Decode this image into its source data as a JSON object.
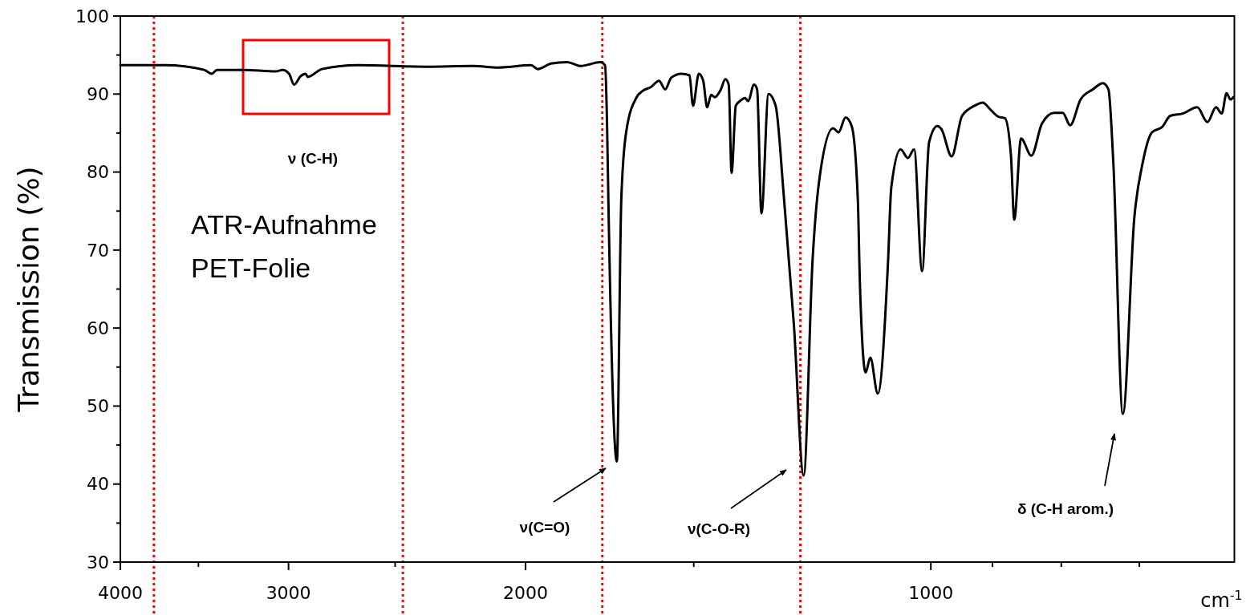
{
  "chart_data": {
    "type": "line",
    "xlabel": "cm$^{-1}$",
    "ylabel": "Transmission (%)",
    "log": "x",
    "xlim": [
      4000,
      595
    ],
    "ylim": [
      30,
      100
    ],
    "xticks": [
      4000,
      3000,
      2000,
      1000,
      {
        "value": 3500,
        "label": null
      },
      {
        "value": 2500,
        "label": null
      },
      {
        "value": 1500,
        "label": null
      },
      {
        "value": 900,
        "label": null
      },
      {
        "value": 800,
        "label": null
      },
      {
        "value": 700,
        "label": null
      }
    ],
    "yticks": [
      30,
      40,
      50,
      60,
      70,
      80,
      90,
      100,
      {
        "value": 35,
        "label": null
      },
      {
        "value": 45,
        "label": null
      },
      {
        "value": 55,
        "label": null
      },
      {
        "value": 65,
        "label": null
      },
      {
        "value": 75,
        "label": null
      },
      {
        "value": 85,
        "label": null
      },
      {
        "value": 95,
        "label": null
      }
    ],
    "ref_lines": [
      {
        "axis": "x",
        "value": 3777,
        "color": "#ff0000",
        "line_style": "dotted"
      },
      {
        "axis": "x",
        "value": 2467,
        "color": "#ff0000",
        "line_style": "dotted"
      },
      {
        "axis": "x",
        "value": 1754,
        "color": "#ff0000",
        "line_style": "dotted"
      },
      {
        "axis": "x",
        "value": 1250,
        "color": "#ff0000",
        "line_style": "dotted"
      }
    ],
    "annotations": [
      "ATR-Aufnahme",
      "PET-Folie",
      "ν (C-H)",
      "ν(C=O)",
      "ν(C-O-R)",
      "δ (C-H arom.)"
    ],
    "series": [
      {
        "color": "#000000",
        "x": [
          4000,
          3705,
          3466,
          3421,
          3390,
          3242,
          3066,
          3031,
          2997,
          2972,
          2938,
          2914,
          2903,
          2833,
          2665,
          2369,
          2190,
          2095,
          1981,
          1959,
          1915,
          1863,
          1820,
          1760,
          1746,
          1740,
          1736,
          1711,
          1698,
          1684,
          1654,
          1637,
          1614,
          1592,
          1575,
          1559,
          1532,
          1511,
          1502,
          1487,
          1476,
          1466,
          1456,
          1447,
          1433,
          1421,
          1413,
          1406,
          1396,
          1386,
          1374,
          1367,
          1353,
          1346,
          1336,
          1320,
          1304,
          1286,
          1264,
          1243,
          1224,
          1211,
          1182,
          1171,
          1157,
          1145,
          1133,
          1129,
          1118,
          1109,
          1095,
          1076,
          1070,
          1053,
          1040,
          1029,
          1015,
          1003,
          989,
          982,
          965,
          948,
          928,
          915,
          903,
          891,
          881,
          872,
          867,
          857,
          842,
          827,
          810,
          798,
          788,
          774,
          758,
          745,
          738,
          732,
          720,
          706,
          696,
          685,
          673,
          664,
          650,
          634,
          623,
          614,
          608,
          603,
          599,
          596
        ],
        "values": [
          93.7,
          93.7,
          93.1,
          92.6,
          93.1,
          93.1,
          92.9,
          93.1,
          92.6,
          91.2,
          92.3,
          92.6,
          92.2,
          93.2,
          93.7,
          93.5,
          93.6,
          93.4,
          93.7,
          93.2,
          93.9,
          94.1,
          93.6,
          94.1,
          93.7,
          86.4,
          76.5,
          42.9,
          76.5,
          85.1,
          89.6,
          90.4,
          90.9,
          91.7,
          90.6,
          92.1,
          92.6,
          92.4,
          88.5,
          92.6,
          91.7,
          88.3,
          89.9,
          89.6,
          90.5,
          91.9,
          91.2,
          79.9,
          88.5,
          89.1,
          89.5,
          89.1,
          91.2,
          90.6,
          74.7,
          90.0,
          88.5,
          77.0,
          60.5,
          41.1,
          68.9,
          78.6,
          85.6,
          85.1,
          87.0,
          85.9,
          76.5,
          65.8,
          54.3,
          56.2,
          51.6,
          68.4,
          78.0,
          82.9,
          81.8,
          82.9,
          67.3,
          83.8,
          85.9,
          85.5,
          82.0,
          87.2,
          88.5,
          88.9,
          88.0,
          87.1,
          86.9,
          82.2,
          73.9,
          84.3,
          82.1,
          86.2,
          87.6,
          87.6,
          86.0,
          89.3,
          90.6,
          91.4,
          90.6,
          81.5,
          49.0,
          74.2,
          81.2,
          85.1,
          85.8,
          87.2,
          87.5,
          88.3,
          86.4,
          88.3,
          87.5,
          90.1,
          89.3,
          89.6
        ]
      }
    ]
  }
}
